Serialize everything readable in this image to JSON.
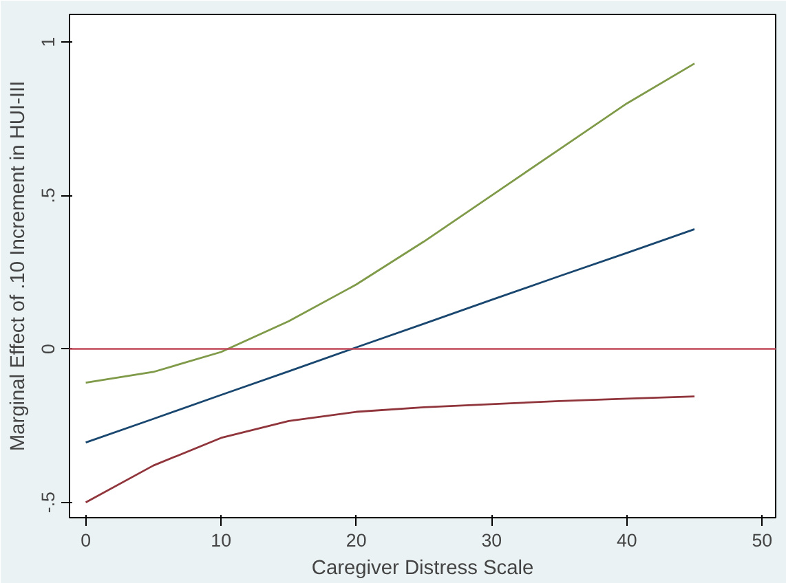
{
  "chart_data": {
    "type": "line",
    "xlabel": "Caregiver Distress Scale",
    "ylabel": "Marginal Effect of .10 Increment in HUI-III",
    "x": [
      0,
      5,
      10,
      15,
      20,
      25,
      30,
      35,
      40,
      45
    ],
    "series": [
      {
        "color": "#1a476f",
        "values": [
          -0.305,
          -0.228,
          -0.15,
          -0.073,
          0.005,
          0.082,
          0.16,
          0.237,
          0.313,
          0.39
        ]
      },
      {
        "color": "#90353b",
        "values": [
          -0.5,
          -0.38,
          -0.29,
          -0.235,
          -0.205,
          -0.19,
          -0.18,
          -0.17,
          -0.162,
          -0.155
        ]
      },
      {
        "color": "#7f9a48",
        "values": [
          -0.11,
          -0.075,
          -0.01,
          0.09,
          0.21,
          0.35,
          0.5,
          0.65,
          0.8,
          0.93
        ]
      }
    ],
    "xlim": [
      -1.2,
      51
    ],
    "ylim": [
      -0.55,
      1.09
    ],
    "xticks": [
      0,
      10,
      20,
      30,
      40,
      50
    ],
    "yticks": [
      {
        "value": -0.5,
        "label": "-.5"
      },
      0,
      {
        "value": 0.5,
        "label": ".5"
      },
      1
    ],
    "ref_lines": [
      {
        "axis": "y",
        "value": 0,
        "color": "#c0485a"
      }
    ],
    "grid": false,
    "line_style": "solid",
    "marker": "none"
  }
}
